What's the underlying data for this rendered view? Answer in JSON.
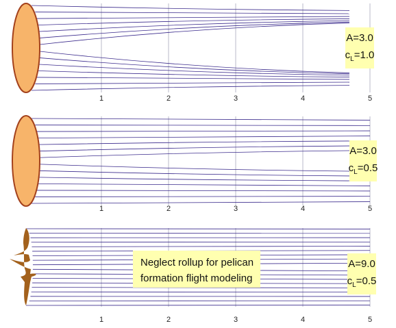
{
  "panels": [
    {
      "ticks": [
        1,
        2,
        3,
        4,
        5
      ],
      "label": {
        "a": "A=3.0",
        "c": "c",
        "sub": "L",
        "cl": "=1.0"
      }
    },
    {
      "ticks": [
        1,
        2,
        3,
        4,
        5
      ],
      "label": {
        "a": "A=3.0",
        "c": "c",
        "sub": "L",
        "cl": "=0.5"
      }
    },
    {
      "ticks": [
        1,
        2,
        3,
        4,
        5
      ],
      "label": {
        "a": "A=9.0",
        "c": "c",
        "sub": "L",
        "cl": "=0.5"
      }
    }
  ],
  "note": [
    "Neglect rollup for pelican",
    "formation flight modeling"
  ]
}
